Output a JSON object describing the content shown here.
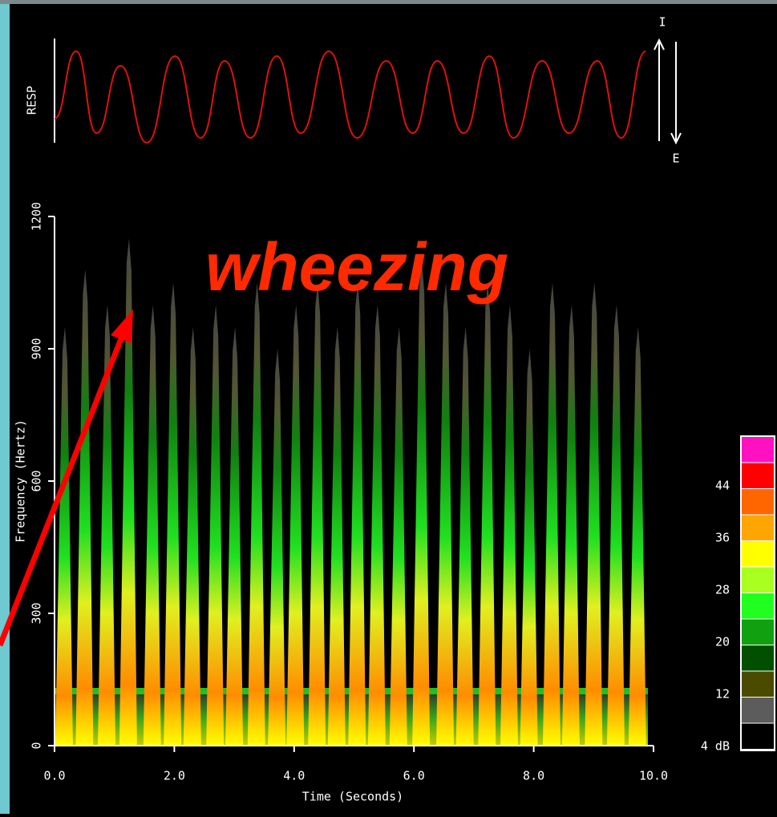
{
  "chart_data": {
    "type": "spectrogram",
    "annotation": "wheezing",
    "xlabel": "Time (Seconds)",
    "ylabel": "Frequency (Hertz)",
    "xlim": [
      0,
      10
    ],
    "ylim": [
      0,
      1200
    ],
    "xticks": [
      {
        "value": 0,
        "label": "0.0"
      },
      {
        "value": 2,
        "label": "2.0"
      },
      {
        "value": 4,
        "label": "4.0"
      },
      {
        "value": 6,
        "label": "6.0"
      },
      {
        "value": 8,
        "label": "8.0"
      },
      {
        "value": 10,
        "label": "10.0"
      }
    ],
    "yticks": [
      0,
      300,
      600,
      900,
      1200
    ],
    "x": [
      0.16,
      0.5,
      0.87,
      1.23,
      1.63,
      1.97,
      2.3,
      2.68,
      3.0,
      3.37,
      3.71,
      4.02,
      4.38,
      4.71,
      5.05,
      5.38,
      5.74,
      6.12,
      6.52,
      6.85,
      7.22,
      7.59,
      7.92,
      8.3,
      8.62,
      9.0,
      9.37,
      9.73
    ],
    "values": [
      950,
      1080,
      1000,
      1150,
      1000,
      1050,
      950,
      1000,
      950,
      1050,
      900,
      1000,
      1050,
      950,
      1050,
      1000,
      950,
      1100,
      1050,
      950,
      1050,
      1000,
      900,
      1050,
      1000,
      1050,
      1000,
      950
    ],
    "resp": {
      "label": "RESP",
      "inspiration": "I",
      "expiration": "E",
      "color": "#e01010",
      "x": [
        0,
        0.36,
        0.7,
        1.1,
        1.54,
        2.01,
        2.44,
        2.84,
        3.27,
        3.71,
        4.11,
        4.58,
        5.05,
        5.54,
        5.98,
        6.39,
        6.83,
        7.26,
        7.66,
        8.14,
        8.59,
        9.06,
        9.46,
        9.87
      ],
      "values": [
        0.25,
        0.95,
        0.1,
        0.8,
        0,
        0.9,
        0.05,
        0.85,
        0.05,
        0.9,
        0.1,
        0.95,
        0.05,
        0.85,
        0.1,
        0.85,
        0.1,
        0.9,
        0.05,
        0.85,
        0.1,
        0.85,
        0.05,
        0.95
      ]
    },
    "colorbar": {
      "levels": [
        4,
        8,
        12,
        16,
        20,
        24,
        28,
        32,
        36,
        40,
        44,
        48,
        52
      ],
      "colors": [
        "#000000",
        "#5c5c5c",
        "#4b4b00",
        "#005000",
        "#10a010",
        "#20ff20",
        "#a8ff20",
        "#ffff00",
        "#ffa500",
        "#ff6600",
        "#ff0000",
        "#ff10c0"
      ],
      "ticks": [
        {
          "value": 4,
          "label": "4 dB"
        },
        12,
        20,
        28,
        36,
        44
      ]
    }
  }
}
